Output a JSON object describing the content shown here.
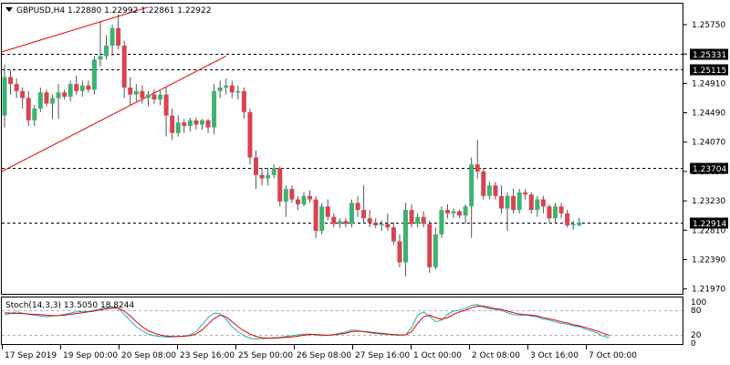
{
  "chart_title": "GBPUSD,H4  1.22880 1.22992 1.22861 1.22922",
  "chart_data": [
    {
      "type": "candlestick",
      "symbol": "GBPUSD",
      "timeframe": "H4",
      "ohlc_readout": [
        1.2288,
        1.22992,
        1.22861,
        1.22922
      ],
      "ylim": [
        1.219,
        1.2605
      ],
      "y_ticks": [
        1.2575,
        1.2533,
        1.2491,
        1.2449,
        1.2407,
        1.2365,
        1.2323,
        1.2281,
        1.2239,
        1.2197
      ],
      "y_tick_labels": [
        "1.25750",
        "1.25330",
        "1.24910",
        "1.24490",
        "1.24070",
        "1.23650",
        "1.23230",
        "1.22810",
        "1.22390",
        "1.21970"
      ],
      "x_tick_labels": [
        "17 Sep 2019",
        "19 Sep 00:00",
        "20 Sep 08:00",
        "23 Sep 16:00",
        "25 Sep 00:00",
        "26 Sep 08:00",
        "27 Sep 16:00",
        "1 Oct 00:00",
        "2 Oct 08:00",
        "3 Oct 16:00",
        "7 Oct 00:00"
      ],
      "horizontal_levels": [
        {
          "value": 1.25331,
          "label": "1.25331"
        },
        {
          "value": 1.25115,
          "label": "1.25115"
        },
        {
          "value": 1.23704,
          "label": "1.23704"
        },
        {
          "value": 1.22914,
          "label": "1.22914"
        }
      ],
      "trendlines": [
        {
          "from": [
            0,
            1.2536
          ],
          "to": [
            24,
            1.26
          ],
          "color": "#e00000"
        },
        {
          "from": [
            0,
            1.2365
          ],
          "to": [
            37,
            1.253
          ],
          "color": "#e00000"
        }
      ],
      "candles": [
        [
          1.2445,
          1.2518,
          1.2428,
          1.25
        ],
        [
          1.25,
          1.251,
          1.2475,
          1.249
        ],
        [
          1.249,
          1.2498,
          1.247,
          1.248
        ],
        [
          1.248,
          1.2485,
          1.2455,
          1.247
        ],
        [
          1.247,
          1.248,
          1.243,
          1.2438
        ],
        [
          1.2438,
          1.246,
          1.243,
          1.2455
        ],
        [
          1.2455,
          1.2485,
          1.245,
          1.2478
        ],
        [
          1.2478,
          1.2482,
          1.2458,
          1.2462
        ],
        [
          1.2462,
          1.2475,
          1.244,
          1.247
        ],
        [
          1.247,
          1.249,
          1.244,
          1.2478
        ],
        [
          1.2478,
          1.2482,
          1.2468,
          1.2472
        ],
        [
          1.2472,
          1.2495,
          1.2465,
          1.249
        ],
        [
          1.249,
          1.2502,
          1.2475,
          1.248
        ],
        [
          1.248,
          1.2495,
          1.2472,
          1.2488
        ],
        [
          1.2488,
          1.2495,
          1.2478,
          1.2482
        ],
        [
          1.2482,
          1.253,
          1.2475,
          1.2525
        ],
        [
          1.2525,
          1.258,
          1.2515,
          1.253
        ],
        [
          1.253,
          1.256,
          1.2525,
          1.2545
        ],
        [
          1.2545,
          1.2575,
          1.253,
          1.257
        ],
        [
          1.257,
          1.259,
          1.254,
          1.2545
        ],
        [
          1.2545,
          1.2552,
          1.247,
          1.2485
        ],
        [
          1.2485,
          1.25,
          1.246,
          1.2475
        ],
        [
          1.2475,
          1.249,
          1.2465,
          1.248
        ],
        [
          1.248,
          1.2488,
          1.2462,
          1.247
        ],
        [
          1.247,
          1.248,
          1.2458,
          1.2475
        ],
        [
          1.2475,
          1.2482,
          1.2462,
          1.2468
        ],
        [
          1.2468,
          1.248,
          1.246,
          1.2475
        ],
        [
          1.2475,
          1.2485,
          1.2415,
          1.2445
        ],
        [
          1.2445,
          1.2455,
          1.241,
          1.242
        ],
        [
          1.242,
          1.2445,
          1.2415,
          1.2435
        ],
        [
          1.2435,
          1.244,
          1.242,
          1.243
        ],
        [
          1.243,
          1.2442,
          1.2422,
          1.2438
        ],
        [
          1.2438,
          1.2442,
          1.2425,
          1.2432
        ],
        [
          1.2432,
          1.244,
          1.2425,
          1.2438
        ],
        [
          1.2438,
          1.244,
          1.242,
          1.2428
        ],
        [
          1.2428,
          1.249,
          1.2418,
          1.248
        ],
        [
          1.248,
          1.2495,
          1.247,
          1.2485
        ],
        [
          1.2485,
          1.2498,
          1.2475,
          1.2488
        ],
        [
          1.2488,
          1.2495,
          1.247,
          1.2478
        ],
        [
          1.2478,
          1.2488,
          1.2468,
          1.248
        ],
        [
          1.248,
          1.2485,
          1.244,
          1.245
        ],
        [
          1.245,
          1.2455,
          1.2375,
          1.2385
        ],
        [
          1.2385,
          1.2395,
          1.234,
          1.236
        ],
        [
          1.236,
          1.237,
          1.2345,
          1.2355
        ],
        [
          1.2355,
          1.237,
          1.2345,
          1.236
        ],
        [
          1.236,
          1.2375,
          1.2355,
          1.237
        ],
        [
          1.237,
          1.2372,
          1.2315,
          1.2322
        ],
        [
          1.2322,
          1.2345,
          1.23,
          1.234
        ],
        [
          1.234,
          1.2345,
          1.232,
          1.2325
        ],
        [
          1.2325,
          1.233,
          1.231,
          1.2318
        ],
        [
          1.2318,
          1.2335,
          1.2315,
          1.233
        ],
        [
          1.233,
          1.2338,
          1.232,
          1.2325
        ],
        [
          1.2325,
          1.233,
          1.227,
          1.228
        ],
        [
          1.228,
          1.232,
          1.2275,
          1.2315
        ],
        [
          1.2315,
          1.2325,
          1.2295,
          1.23
        ],
        [
          1.23,
          1.2305,
          1.2285,
          1.229
        ],
        [
          1.229,
          1.2298,
          1.2284,
          1.2294
        ],
        [
          1.2294,
          1.2298,
          1.2285,
          1.229
        ],
        [
          1.229,
          1.2325,
          1.2285,
          1.232
        ],
        [
          1.232,
          1.233,
          1.23,
          1.231
        ],
        [
          1.231,
          1.2345,
          1.229,
          1.2298
        ],
        [
          1.2298,
          1.231,
          1.2285,
          1.2292
        ],
        [
          1.2292,
          1.2298,
          1.2284,
          1.2288
        ],
        [
          1.2288,
          1.2295,
          1.228,
          1.229
        ],
        [
          1.229,
          1.2305,
          1.228,
          1.2285
        ],
        [
          1.2285,
          1.2292,
          1.226,
          1.2265
        ],
        [
          1.2265,
          1.2275,
          1.2228,
          1.2235
        ],
        [
          1.2235,
          1.232,
          1.2215,
          1.231
        ],
        [
          1.231,
          1.2318,
          1.2285,
          1.229
        ],
        [
          1.229,
          1.2305,
          1.2285,
          1.23
        ],
        [
          1.23,
          1.2308,
          1.2285,
          1.229
        ],
        [
          1.229,
          1.2295,
          1.222,
          1.2228
        ],
        [
          1.2228,
          1.2285,
          1.2225,
          1.2275
        ],
        [
          1.2275,
          1.2315,
          1.227,
          1.231
        ],
        [
          1.231,
          1.2318,
          1.2298,
          1.2305
        ],
        [
          1.2305,
          1.2312,
          1.2298,
          1.2308
        ],
        [
          1.2308,
          1.231,
          1.2298,
          1.2302
        ],
        [
          1.2302,
          1.2318,
          1.229,
          1.2315
        ],
        [
          1.2315,
          1.2385,
          1.227,
          1.2375
        ],
        [
          1.2375,
          1.241,
          1.2355,
          1.2365
        ],
        [
          1.2365,
          1.237,
          1.2325,
          1.233
        ],
        [
          1.233,
          1.235,
          1.2325,
          1.2345
        ],
        [
          1.2345,
          1.235,
          1.2325,
          1.233
        ],
        [
          1.233,
          1.2345,
          1.2305,
          1.2312
        ],
        [
          1.2312,
          1.2335,
          1.228,
          1.233
        ],
        [
          1.233,
          1.234,
          1.2305,
          1.231
        ],
        [
          1.231,
          1.234,
          1.2305,
          1.2335
        ],
        [
          1.2335,
          1.234,
          1.2325,
          1.2332
        ],
        [
          1.2332,
          1.2335,
          1.2305,
          1.231
        ],
        [
          1.231,
          1.233,
          1.23,
          1.2325
        ],
        [
          1.2325,
          1.233,
          1.2305,
          1.2315
        ],
        [
          1.2315,
          1.2318,
          1.2292,
          1.2298
        ],
        [
          1.2298,
          1.232,
          1.2292,
          1.2315
        ],
        [
          1.2315,
          1.232,
          1.2298,
          1.2305
        ],
        [
          1.2305,
          1.231,
          1.2285,
          1.2288
        ],
        [
          1.2288,
          1.2295,
          1.2282,
          1.229
        ],
        [
          1.2288,
          1.2299,
          1.2286,
          1.2292
        ]
      ]
    },
    {
      "type": "line",
      "title": "Stoch(14,3,3) 13.5050 18.8244",
      "indicator": "Stoch(14,3,3)",
      "readout": [
        13.505,
        18.8244
      ],
      "ylim": [
        0,
        100
      ],
      "levels": [
        80,
        20
      ],
      "y_tick_labels": [
        "100",
        "80",
        "20",
        "0"
      ],
      "series": [
        {
          "color": "#20b2aa",
          "values": [
            69,
            72,
            76,
            73,
            70,
            68,
            66,
            64,
            66,
            67,
            70,
            73,
            76,
            77,
            77,
            80,
            83,
            86,
            88,
            85,
            70,
            55,
            40,
            30,
            22,
            18,
            16,
            15,
            15,
            16,
            17,
            20,
            28,
            45,
            62,
            73,
            72,
            58,
            40,
            28,
            18,
            12,
            10,
            11,
            12,
            13,
            14,
            16,
            18,
            20,
            22,
            22,
            20,
            18,
            19,
            21,
            24,
            27,
            32,
            30,
            28,
            25,
            23,
            22,
            21,
            20,
            19,
            20,
            38,
            68,
            76,
            65,
            52,
            56,
            70,
            78,
            80,
            84,
            92,
            94,
            88,
            84,
            82,
            80,
            74,
            69,
            68,
            68,
            66,
            64,
            58,
            56,
            52,
            48,
            46,
            42,
            40,
            34,
            30,
            24,
            17,
            13.5
          ]
        },
        {
          "color": "#e00000",
          "values": [
            74,
            73,
            72,
            72,
            71,
            70,
            69,
            68,
            67,
            67,
            68,
            70,
            72,
            74,
            76,
            78,
            81,
            83,
            85,
            85,
            78,
            66,
            52,
            40,
            30,
            24,
            20,
            17,
            16,
            16,
            17,
            18,
            22,
            32,
            46,
            60,
            68,
            64,
            52,
            40,
            30,
            22,
            16,
            13,
            12,
            12,
            13,
            14,
            15,
            17,
            19,
            21,
            21,
            20,
            19,
            20,
            22,
            24,
            28,
            29,
            28,
            27,
            25,
            24,
            22,
            21,
            20,
            20,
            28,
            48,
            64,
            68,
            62,
            58,
            62,
            70,
            76,
            80,
            86,
            90,
            90,
            87,
            84,
            82,
            78,
            74,
            71,
            69,
            68,
            66,
            62,
            59,
            56,
            52,
            49,
            45,
            42,
            38,
            34,
            29,
            24,
            18.8
          ]
        }
      ]
    }
  ]
}
